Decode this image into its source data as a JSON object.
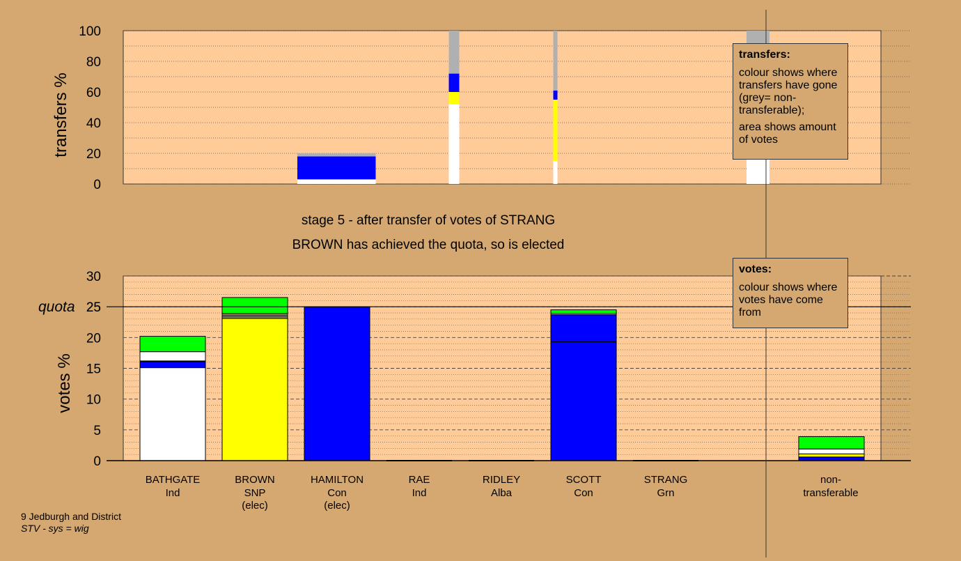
{
  "colors": {
    "background": "#d4a870",
    "plot_background": "#ffcc99",
    "Ind": "#ffffff",
    "SNP": "#ffff00",
    "Con": "#0000ff",
    "Grn": "#00ff00",
    "Alba": "#a0a020",
    "non_transferable": "#b0b0b0"
  },
  "labels": {
    "stage_line1": "stage 5 - after transfer of votes of STRANG",
    "stage_line2": "BROWN has achieved the quota, so is elected",
    "quota_label": "quota",
    "footer_line1": "9 Jedburgh and District",
    "footer_line2": "STV - sys = wig"
  },
  "legends": {
    "transfers": {
      "title": "transfers:",
      "para1": "colour shows where transfers have gone (grey= non-transferable);",
      "para2": "area shows amount of votes"
    },
    "votes": {
      "title": "votes:",
      "para1": "colour shows where votes have come from"
    }
  },
  "chart_data": [
    {
      "type": "bar",
      "title": "",
      "ylabel": "transfers %",
      "ylim": [
        0,
        100
      ],
      "yticks": [
        0,
        20,
        40,
        60,
        80,
        100
      ],
      "grid": "dotted",
      "columns": [
        {
          "x": [
            0.0,
            1.0
          ],
          "stack": []
        },
        {
          "x": [
            1.0,
            2.0
          ],
          "stack": []
        },
        {
          "x": [
            2.0,
            2.75
          ],
          "stack": [
            {
              "from": "Ind",
              "value": 3
            },
            {
              "from": "Con",
              "value": 15
            },
            {
              "from": "non_transferable",
              "value": 2
            }
          ]
        },
        {
          "x": [
            3.45,
            3.55
          ],
          "stack": [
            {
              "from": "Ind",
              "value": 52
            },
            {
              "from": "SNP",
              "value": 8
            },
            {
              "from": "Con",
              "value": 12
            },
            {
              "from": "non_transferable",
              "value": 28
            }
          ]
        },
        {
          "x": [
            4.45,
            4.49
          ],
          "stack": [
            {
              "from": "Ind",
              "value": 15
            },
            {
              "from": "SNP",
              "value": 40
            },
            {
              "from": "Con",
              "value": 6
            },
            {
              "from": "non_transferable",
              "value": 39
            }
          ]
        },
        {
          "x": [
            5.0,
            6.0
          ],
          "stack": []
        },
        {
          "x": [
            6.3,
            6.52
          ],
          "stack": [
            {
              "from": "Ind",
              "value": 33
            },
            {
              "from": "SNP",
              "value": 35
            },
            {
              "from": "Con",
              "value": 6
            },
            {
              "from": "non_transferable",
              "value": 26
            }
          ]
        }
      ]
    },
    {
      "type": "bar",
      "title": "",
      "ylabel": "votes %",
      "ylim": [
        0,
        30
      ],
      "yticks": [
        0,
        5,
        10,
        15,
        20,
        25,
        30
      ],
      "quota": 25,
      "grid": "dashed",
      "candidates": [
        {
          "name": "BATHGATE",
          "party": "Ind",
          "status": "",
          "stack": [
            {
              "from": "Ind",
              "value": 15.1
            },
            {
              "from": "Con",
              "value": 1.0
            },
            {
              "from": "SNP",
              "value": 0.1
            },
            {
              "from": "Ind",
              "value": 1.5
            },
            {
              "from": "Grn",
              "value": 2.5
            }
          ]
        },
        {
          "name": "BROWN",
          "party": "SNP",
          "status": "(elec)",
          "stack": [
            {
              "from": "SNP",
              "value": 23.1
            },
            {
              "from": "Alba",
              "value": 0.3
            },
            {
              "from": "Ind",
              "value": 0.2
            },
            {
              "from": "Alba",
              "value": 0.3
            },
            {
              "from": "Grn",
              "value": 2.6
            }
          ]
        },
        {
          "name": "HAMILTON",
          "party": "Con",
          "status": "(elec)",
          "stack": [
            {
              "from": "Con",
              "value": 25.0
            }
          ]
        },
        {
          "name": "RAE",
          "party": "Ind",
          "status": "",
          "stack": []
        },
        {
          "name": "RIDLEY",
          "party": "Alba",
          "status": "",
          "stack": []
        },
        {
          "name": "SCOTT",
          "party": "Con",
          "status": "",
          "stack": [
            {
              "from": "Con",
              "value": 19.3
            },
            {
              "from": "Con",
              "value": 4.4
            },
            {
              "from": "Ind",
              "value": 0.2
            },
            {
              "from": "Grn",
              "value": 0.6
            }
          ]
        },
        {
          "name": "STRANG",
          "party": "Grn",
          "status": "",
          "stack": []
        }
      ],
      "non_transferable": {
        "label_line1": "non-",
        "label_line2": "transferable",
        "stack": [
          {
            "from": "Con",
            "value": 0.6
          },
          {
            "from": "SNP",
            "value": 0.5
          },
          {
            "from": "Ind",
            "value": 0.8
          },
          {
            "from": "Grn",
            "value": 2.0
          }
        ]
      }
    }
  ]
}
